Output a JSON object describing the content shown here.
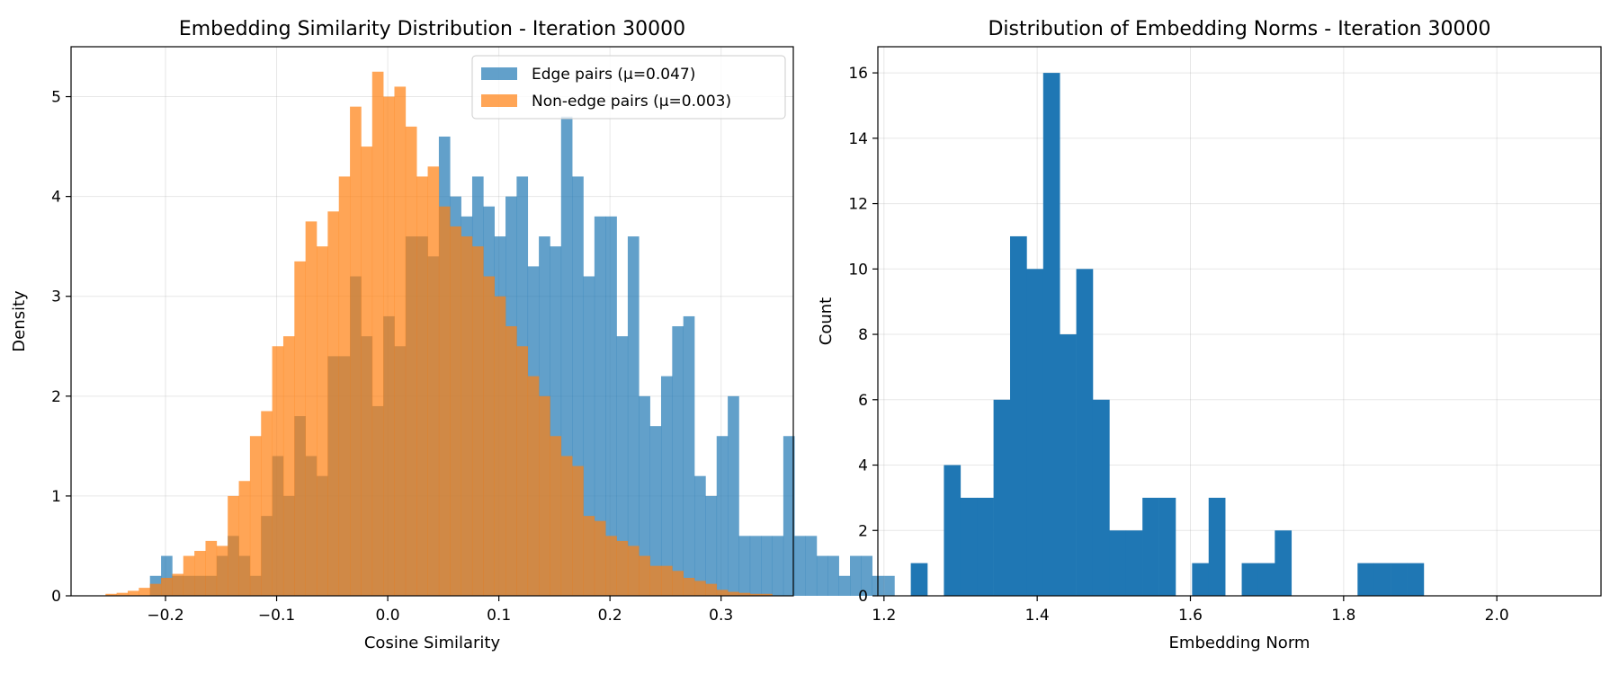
{
  "chart_data": [
    {
      "type": "histogram",
      "title": "Embedding Similarity Distribution - Iteration 30000",
      "xlabel": "Cosine Similarity",
      "ylabel": "Density",
      "xlim": [
        -0.285,
        0.365
      ],
      "ylim": [
        0,
        5.5
      ],
      "xticks": [
        -0.2,
        -0.1,
        0.0,
        0.1,
        0.2,
        0.3
      ],
      "xtick_labels": [
        "−0.2",
        "−0.1",
        "0.0",
        "0.1",
        "0.2",
        "0.3"
      ],
      "yticks": [
        0,
        1,
        2,
        3,
        4,
        5
      ],
      "ytick_labels": [
        "0",
        "1",
        "2",
        "3",
        "4",
        "5"
      ],
      "grid": true,
      "legend": {
        "placement": "top-right"
      },
      "series": [
        {
          "name": "Edge pairs (μ=0.047)",
          "color": "#1f77b4",
          "alpha": 0.7,
          "bin_start": -0.214,
          "bin_width": 0.01,
          "values": [
            0.2,
            0.4,
            0.2,
            0.2,
            0.2,
            0.2,
            0.4,
            0.6,
            0.4,
            0.2,
            0.8,
            1.4,
            1.0,
            1.8,
            1.4,
            1.2,
            2.4,
            2.4,
            3.2,
            2.6,
            1.9,
            2.8,
            2.5,
            3.6,
            3.6,
            3.4,
            4.6,
            4.0,
            3.8,
            4.2,
            3.9,
            3.6,
            4.0,
            4.2,
            3.3,
            3.6,
            3.5,
            4.8,
            4.2,
            3.2,
            3.8,
            3.8,
            2.6,
            3.6,
            2.0,
            1.7,
            2.2,
            2.7,
            2.8,
            1.2,
            1.0,
            1.6,
            2.0,
            0.6,
            0.6,
            0.6,
            0.6,
            1.6,
            0.6,
            0.6,
            0.4,
            0.4,
            0.2,
            0.4,
            0.4,
            0.2,
            0.2
          ]
        },
        {
          "name": "Non-edge pairs (μ=0.003)",
          "color": "#ff7f0e",
          "alpha": 0.7,
          "bin_start": -0.254,
          "bin_width": 0.01,
          "values": [
            0.02,
            0.03,
            0.05,
            0.08,
            0.12,
            0.18,
            0.22,
            0.4,
            0.45,
            0.55,
            0.5,
            1.0,
            1.15,
            1.6,
            1.85,
            2.5,
            2.6,
            3.35,
            3.75,
            3.5,
            3.85,
            4.2,
            4.9,
            4.5,
            5.25,
            5.0,
            5.1,
            4.7,
            4.2,
            4.3,
            3.9,
            3.7,
            3.6,
            3.5,
            3.2,
            3.0,
            2.7,
            2.5,
            2.2,
            2.0,
            1.6,
            1.4,
            1.3,
            0.8,
            0.75,
            0.6,
            0.55,
            0.5,
            0.4,
            0.3,
            0.3,
            0.25,
            0.18,
            0.15,
            0.12,
            0.06,
            0.04,
            0.03,
            0.02,
            0.02
          ]
        }
      ]
    },
    {
      "type": "histogram",
      "title": "Distribution of Embedding Norms - Iteration 30000",
      "xlabel": "Embedding Norm",
      "ylabel": "Count",
      "xlim": [
        1.192,
        2.136
      ],
      "ylim": [
        0,
        16.8
      ],
      "xticks": [
        1.2,
        1.4,
        1.6,
        1.8,
        2.0
      ],
      "xtick_labels": [
        "1.2",
        "1.4",
        "1.6",
        "1.8",
        "2.0"
      ],
      "yticks": [
        0,
        2,
        4,
        6,
        8,
        10,
        12,
        14,
        16
      ],
      "ytick_labels": [
        "0",
        "2",
        "4",
        "6",
        "8",
        "10",
        "12",
        "14",
        "16"
      ],
      "grid": true,
      "series": [
        {
          "color": "#1f77b4",
          "alpha": 1.0,
          "bin_start": 1.235,
          "bin_width": 0.0216,
          "values": [
            1,
            0,
            4,
            3,
            3,
            6,
            11,
            10,
            16,
            8,
            10,
            6,
            2,
            2,
            3,
            3,
            0,
            1,
            3,
            0,
            1,
            1,
            2,
            0,
            0,
            0,
            0,
            1,
            1,
            1,
            1
          ]
        }
      ]
    }
  ]
}
